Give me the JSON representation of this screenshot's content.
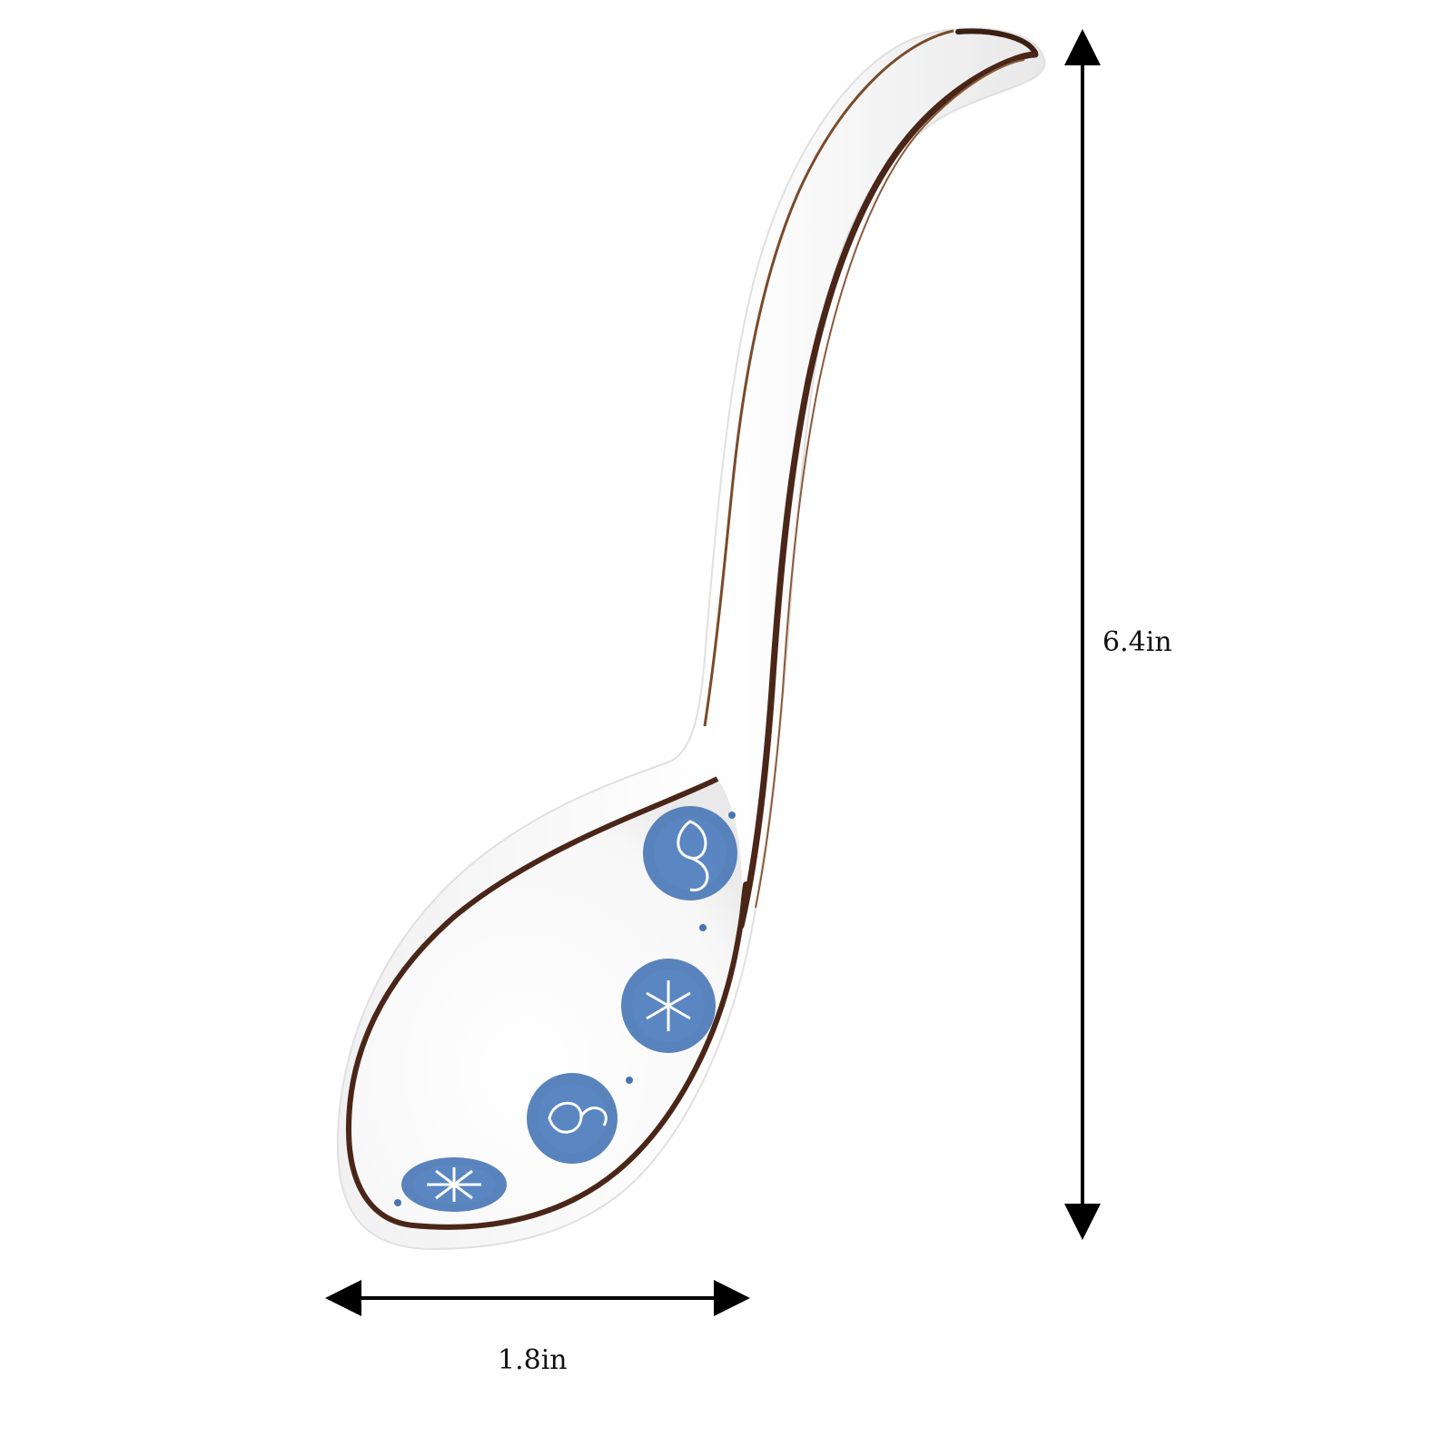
{
  "dimensions": {
    "height_label": "6.4in",
    "width_label": "1.8in"
  },
  "colors": {
    "background": "#ffffff",
    "porcelain": "#fbfbfb",
    "rim": "#4a2618",
    "pattern_blue": "#3f6fb0",
    "pattern_light": "#7aa2d4",
    "arrow": "#000000"
  },
  "icons": {
    "height_arrow": "double-headed-vertical-arrow",
    "width_arrow": "double-headed-horizontal-arrow"
  }
}
